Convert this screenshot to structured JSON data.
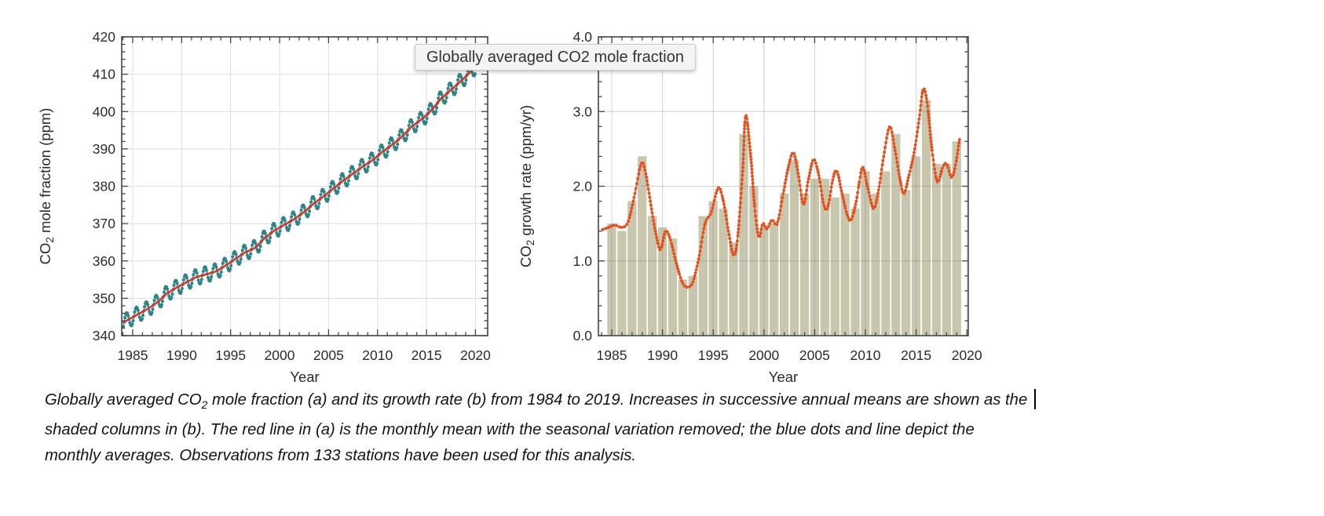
{
  "tooltip": {
    "text": "Globally averaged CO2 mole fraction"
  },
  "charts": {
    "a": {
      "ylabel_pre": "CO",
      "ylabel_sub": "2",
      "ylabel_post": " mole fraction (ppm)",
      "xlabel": "Year",
      "yticks": [
        340,
        350,
        360,
        370,
        380,
        390,
        400,
        410,
        420
      ],
      "xticks": [
        1985,
        1990,
        1995,
        2000,
        2005,
        2010,
        2015,
        2020
      ]
    },
    "b": {
      "ylabel_pre": "CO",
      "ylabel_sub": "2",
      "ylabel_post": " growth rate (ppm/yr)",
      "xlabel": "Year",
      "yticks": [
        0,
        1,
        2,
        3,
        4
      ],
      "ytick_labels": [
        "0.0",
        "1.0",
        "2.0",
        "3.0",
        "4.0"
      ],
      "xticks": [
        1985,
        1990,
        1995,
        2000,
        2005,
        2010,
        2015,
        2020
      ]
    }
  },
  "chart_data": [
    {
      "id": "a",
      "type": "line",
      "title": "",
      "xlabel": "Year",
      "ylabel": "CO2 mole fraction (ppm)",
      "xlim": [
        1984,
        2020
      ],
      "ylim": [
        340,
        420
      ],
      "grid": true,
      "years": [
        1984,
        1985,
        1986,
        1987,
        1988,
        1989,
        1990,
        1991,
        1992,
        1993,
        1994,
        1995,
        1996,
        1997,
        1998,
        1999,
        2000,
        2001,
        2002,
        2003,
        2004,
        2005,
        2006,
        2007,
        2008,
        2009,
        2010,
        2011,
        2012,
        2013,
        2014,
        2015,
        2016,
        2017,
        2018,
        2019
      ],
      "red_line_annual_mean_ppm": [
        344.2,
        345.7,
        347.1,
        348.9,
        351.3,
        352.9,
        354.3,
        355.7,
        356.4,
        357.2,
        358.8,
        360.6,
        362.3,
        363.5,
        366.2,
        368.2,
        369.7,
        371.2,
        373.1,
        375.4,
        377.3,
        379.4,
        381.5,
        383.4,
        385.3,
        387.0,
        389.2,
        391.1,
        393.3,
        396.0,
        397.9,
        400.3,
        403.5,
        405.8,
        408.1,
        410.7
      ],
      "blue_monthly_series": {
        "description": "monthly averages = deseasonalized trend + seasonal cycle",
        "seasonal_amplitude_ppm": 2.1,
        "seasonal_max_month": 5,
        "seasonal_min_month": 10
      }
    },
    {
      "id": "b",
      "type": "bar+line",
      "title": "",
      "xlabel": "Year",
      "ylabel": "CO2 growth rate (ppm/yr)",
      "xlim": [
        1984,
        2020
      ],
      "ylim": [
        0.0,
        4.0
      ],
      "grid": true,
      "bar_years": [
        1985,
        1986,
        1987,
        1988,
        1989,
        1990,
        1991,
        1992,
        1993,
        1994,
        1995,
        1996,
        1997,
        1998,
        1999,
        2000,
        2001,
        2002,
        2003,
        2004,
        2005,
        2006,
        2007,
        2008,
        2009,
        2010,
        2011,
        2012,
        2013,
        2014,
        2015,
        2016,
        2017,
        2018,
        2019
      ],
      "bar_values_ppm_per_yr": [
        1.5,
        1.4,
        1.8,
        2.4,
        1.6,
        1.45,
        1.3,
        0.75,
        0.8,
        1.6,
        1.8,
        1.7,
        1.25,
        2.7,
        2.0,
        1.45,
        1.5,
        1.9,
        2.35,
        1.9,
        2.1,
        2.1,
        1.85,
        1.9,
        1.7,
        2.2,
        1.9,
        2.2,
        2.7,
        1.95,
        2.4,
        3.15,
        2.3,
        2.3,
        2.6
      ],
      "line_points": [
        [
          1984.1,
          1.42
        ],
        [
          1984.7,
          1.45
        ],
        [
          1985.3,
          1.48
        ],
        [
          1986.0,
          1.45
        ],
        [
          1986.6,
          1.52
        ],
        [
          1987.2,
          1.85
        ],
        [
          1987.9,
          2.3
        ],
        [
          1988.3,
          2.2
        ],
        [
          1988.8,
          1.8
        ],
        [
          1989.3,
          1.4
        ],
        [
          1989.8,
          1.15
        ],
        [
          1990.3,
          1.4
        ],
        [
          1990.8,
          1.28
        ],
        [
          1991.4,
          0.95
        ],
        [
          1992.0,
          0.7
        ],
        [
          1992.5,
          0.65
        ],
        [
          1993.0,
          0.72
        ],
        [
          1993.6,
          1.05
        ],
        [
          1994.2,
          1.5
        ],
        [
          1994.8,
          1.65
        ],
        [
          1995.5,
          1.98
        ],
        [
          1996.0,
          1.8
        ],
        [
          1996.5,
          1.4
        ],
        [
          1997.0,
          1.08
        ],
        [
          1997.4,
          1.3
        ],
        [
          1997.9,
          2.2
        ],
        [
          1998.2,
          2.95
        ],
        [
          1998.7,
          2.4
        ],
        [
          1999.1,
          1.7
        ],
        [
          1999.5,
          1.32
        ],
        [
          1999.9,
          1.5
        ],
        [
          2000.3,
          1.43
        ],
        [
          2000.8,
          1.55
        ],
        [
          2001.3,
          1.5
        ],
        [
          2001.9,
          1.9
        ],
        [
          2002.4,
          2.25
        ],
        [
          2002.9,
          2.45
        ],
        [
          2003.4,
          2.15
        ],
        [
          2003.9,
          1.76
        ],
        [
          2004.4,
          2.1
        ],
        [
          2004.9,
          2.36
        ],
        [
          2005.4,
          2.15
        ],
        [
          2005.9,
          1.75
        ],
        [
          2006.3,
          1.72
        ],
        [
          2006.8,
          2.1
        ],
        [
          2007.2,
          2.2
        ],
        [
          2007.7,
          1.9
        ],
        [
          2008.2,
          1.62
        ],
        [
          2008.6,
          1.55
        ],
        [
          2009.1,
          1.8
        ],
        [
          2009.7,
          2.25
        ],
        [
          2010.2,
          2.0
        ],
        [
          2010.8,
          1.7
        ],
        [
          2011.3,
          1.95
        ],
        [
          2011.8,
          2.4
        ],
        [
          2012.4,
          2.8
        ],
        [
          2012.9,
          2.5
        ],
        [
          2013.4,
          2.1
        ],
        [
          2013.8,
          1.9
        ],
        [
          2014.3,
          2.15
        ],
        [
          2014.8,
          2.45
        ],
        [
          2015.3,
          2.9
        ],
        [
          2015.7,
          3.3
        ],
        [
          2016.1,
          3.1
        ],
        [
          2016.6,
          2.45
        ],
        [
          2017.1,
          2.06
        ],
        [
          2017.6,
          2.25
        ],
        [
          2018.0,
          2.3
        ],
        [
          2018.5,
          2.12
        ],
        [
          2018.9,
          2.3
        ],
        [
          2019.3,
          2.65
        ]
      ]
    }
  ],
  "caption": {
    "line1_pre": "Globally averaged CO",
    "line1_sub": "2",
    "line1_post": " mole fraction (a) and its growth rate (b) from 1984 to 2019. Increases in successive annual means are shown as the",
    "line2": "shaded columns in (b). The red line in (a) is the monthly mean with the seasonal variation removed; the blue dots and line depict the",
    "line3": "monthly averages. Observations from 133 stations have been used for this analysis."
  },
  "colors": {
    "blue_dots": "#2f8487",
    "red_line": "#ce3b2e",
    "orange_line": "#e2511e",
    "bar_fill": "#c9c6ae",
    "grid": "#dedede",
    "grid_over_bars": "rgba(110,110,110,0.30)",
    "axis": "#444444",
    "text": "#2b2b2b"
  }
}
